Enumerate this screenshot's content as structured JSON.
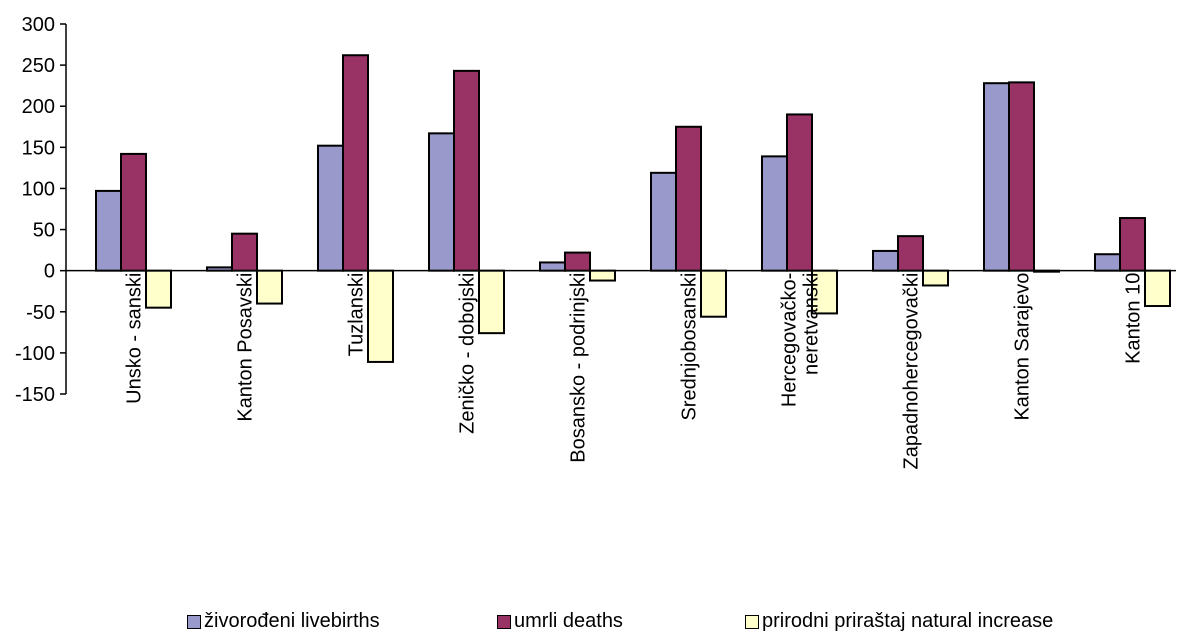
{
  "chart_data": {
    "type": "bar",
    "categories": [
      "Unsko - sanski",
      "Kanton Posavski",
      "Tuzlanski",
      "Zeničko - dobojski",
      "Bosansko - podrinjski",
      "Srednjobosanski",
      "Hercegovačko-\nneretvanski",
      "Zapadnohercegovački",
      "Kanton Sarajevo",
      "Kanton 10"
    ],
    "series": [
      {
        "name": "živorođeni livebirths",
        "color": "#9999cc",
        "values": [
          97,
          4,
          152,
          167,
          10,
          119,
          139,
          24,
          228,
          20
        ]
      },
      {
        "name": "umrli deaths",
        "color": "#993366",
        "values": [
          142,
          45,
          262,
          243,
          22,
          175,
          190,
          42,
          229,
          64
        ]
      },
      {
        "name": "prirodni priraštaj natural increase",
        "color": "#ffffcc",
        "values": [
          -45,
          -40,
          -111,
          -76,
          -12,
          -56,
          -52,
          -18,
          -1,
          -43
        ]
      }
    ],
    "ylim": [
      -150,
      300
    ],
    "yticks": [
      300,
      250,
      200,
      150,
      100,
      50,
      0,
      -50,
      -100,
      -150
    ],
    "legend_position": "bottom"
  }
}
